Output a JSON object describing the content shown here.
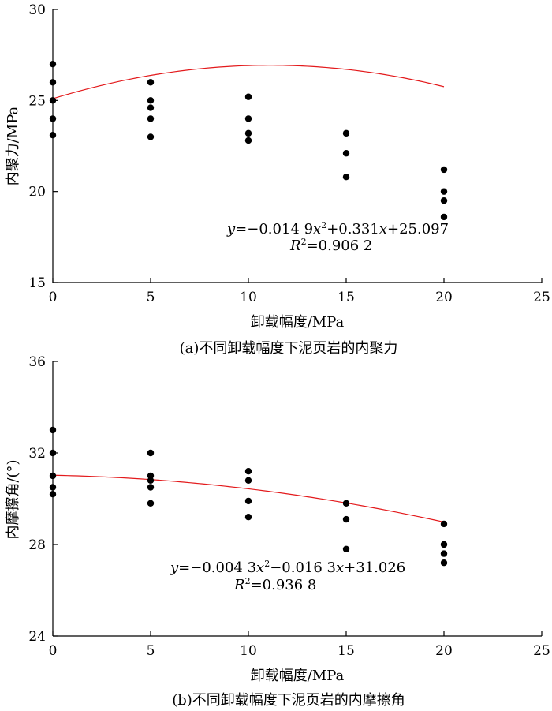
{
  "chart_data": [
    {
      "type": "scatter",
      "caption": "(a)不同卸载幅度下泥页岩的内聚力",
      "xlabel": "卸载幅度/MPa",
      "ylabel": "内聚力/MPa",
      "xlim": [
        0,
        25
      ],
      "ylim": [
        15,
        30
      ],
      "xticks": [
        0,
        5,
        10,
        15,
        20,
        25
      ],
      "yticks": [
        15,
        20,
        25,
        30
      ],
      "grid": false,
      "series": [
        {
          "points": [
            [
              0,
              27.0
            ],
            [
              0,
              26.0
            ],
            [
              0,
              25.0
            ],
            [
              0,
              24.0
            ],
            [
              0,
              23.1
            ],
            [
              5,
              26.0
            ],
            [
              5,
              25.0
            ],
            [
              5,
              24.6
            ],
            [
              5,
              24.0
            ],
            [
              5,
              23.0
            ],
            [
              10,
              25.2
            ],
            [
              10,
              24.0
            ],
            [
              10,
              23.2
            ],
            [
              10,
              22.8
            ],
            [
              15,
              23.2
            ],
            [
              15,
              22.1
            ],
            [
              15,
              20.8
            ],
            [
              20,
              21.2
            ],
            [
              20,
              20.0
            ],
            [
              20,
              19.5
            ],
            [
              20,
              18.6
            ]
          ],
          "color": "#000000"
        }
      ],
      "fit": {
        "coefficients": {
          "a": -0.0149,
          "b": 0.331,
          "c": 25.097
        },
        "x_range": [
          0,
          20
        ],
        "color": "#e31a1c",
        "equation": {
          "y": "y",
          "eq1": "=−0.014 9",
          "x1": "x",
          "sup1": "2",
          "eq2": "+0.331",
          "x2": "x",
          "eq3": "+25.097"
        },
        "r2": {
          "r": "R",
          "sup": "2",
          "val": "=0.906 2"
        }
      }
    },
    {
      "type": "scatter",
      "caption": "(b)不同卸载幅度下泥页岩的内摩擦角",
      "xlabel": "卸载幅度/MPa",
      "ylabel": "内摩擦角/(°)",
      "xlim": [
        0,
        25
      ],
      "ylim": [
        24,
        36
      ],
      "xticks": [
        0,
        5,
        10,
        15,
        20,
        25
      ],
      "yticks": [
        24,
        28,
        32,
        36
      ],
      "grid": false,
      "series": [
        {
          "points": [
            [
              0,
              33.0
            ],
            [
              0,
              32.0
            ],
            [
              0,
              31.0
            ],
            [
              0,
              30.5
            ],
            [
              0,
              30.2
            ],
            [
              5,
              32.0
            ],
            [
              5,
              31.0
            ],
            [
              5,
              30.8
            ],
            [
              5,
              30.5
            ],
            [
              5,
              29.8
            ],
            [
              10,
              31.2
            ],
            [
              10,
              30.8
            ],
            [
              10,
              29.9
            ],
            [
              10,
              29.2
            ],
            [
              15,
              29.8
            ],
            [
              15,
              29.1
            ],
            [
              15,
              27.8
            ],
            [
              20,
              28.9
            ],
            [
              20,
              28.0
            ],
            [
              20,
              27.6
            ],
            [
              20,
              27.2
            ]
          ],
          "color": "#000000"
        }
      ],
      "fit": {
        "coefficients": {
          "a": -0.0043,
          "b": -0.0163,
          "c": 31.026
        },
        "x_range": [
          0,
          20
        ],
        "color": "#e31a1c",
        "equation": {
          "y": "y",
          "eq1": "=−0.004 3",
          "x1": "x",
          "sup1": "2",
          "eq2": "−0.016 3",
          "x2": "x",
          "eq3": "+31.026"
        },
        "r2": {
          "r": "R",
          "sup": "2",
          "val": "=0.936 8"
        }
      }
    }
  ]
}
